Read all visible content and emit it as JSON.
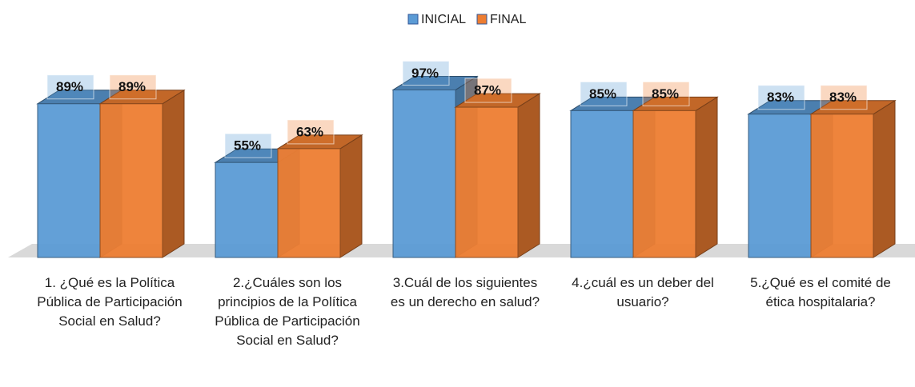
{
  "chart_data": {
    "type": "bar3d",
    "categories": [
      "1. ¿Qué es la Política Pública de Participación Social en Salud?",
      "2.¿Cuáles son los principios de la Política Pública de Participación Social en Salud?",
      "3.Cuál de los siguientes es un derecho en salud?",
      "4.¿cuál es un deber del usuario?",
      "5.¿Qué es el comité de ética hospitalaria?"
    ],
    "series": [
      {
        "name": "INICIAL",
        "color": "#5b9bd5",
        "values": [
          89,
          55,
          97,
          85,
          83
        ],
        "value_labels": [
          "89%",
          "55%",
          "97%",
          "85%",
          "83%"
        ]
      },
      {
        "name": "FINAL",
        "color": "#ed7d31",
        "values": [
          89,
          63,
          87,
          85,
          83
        ],
        "value_labels": [
          "89%",
          "63%",
          "87%",
          "85%",
          "83%"
        ]
      }
    ],
    "ylim": [
      0,
      100
    ],
    "legend": "top"
  }
}
